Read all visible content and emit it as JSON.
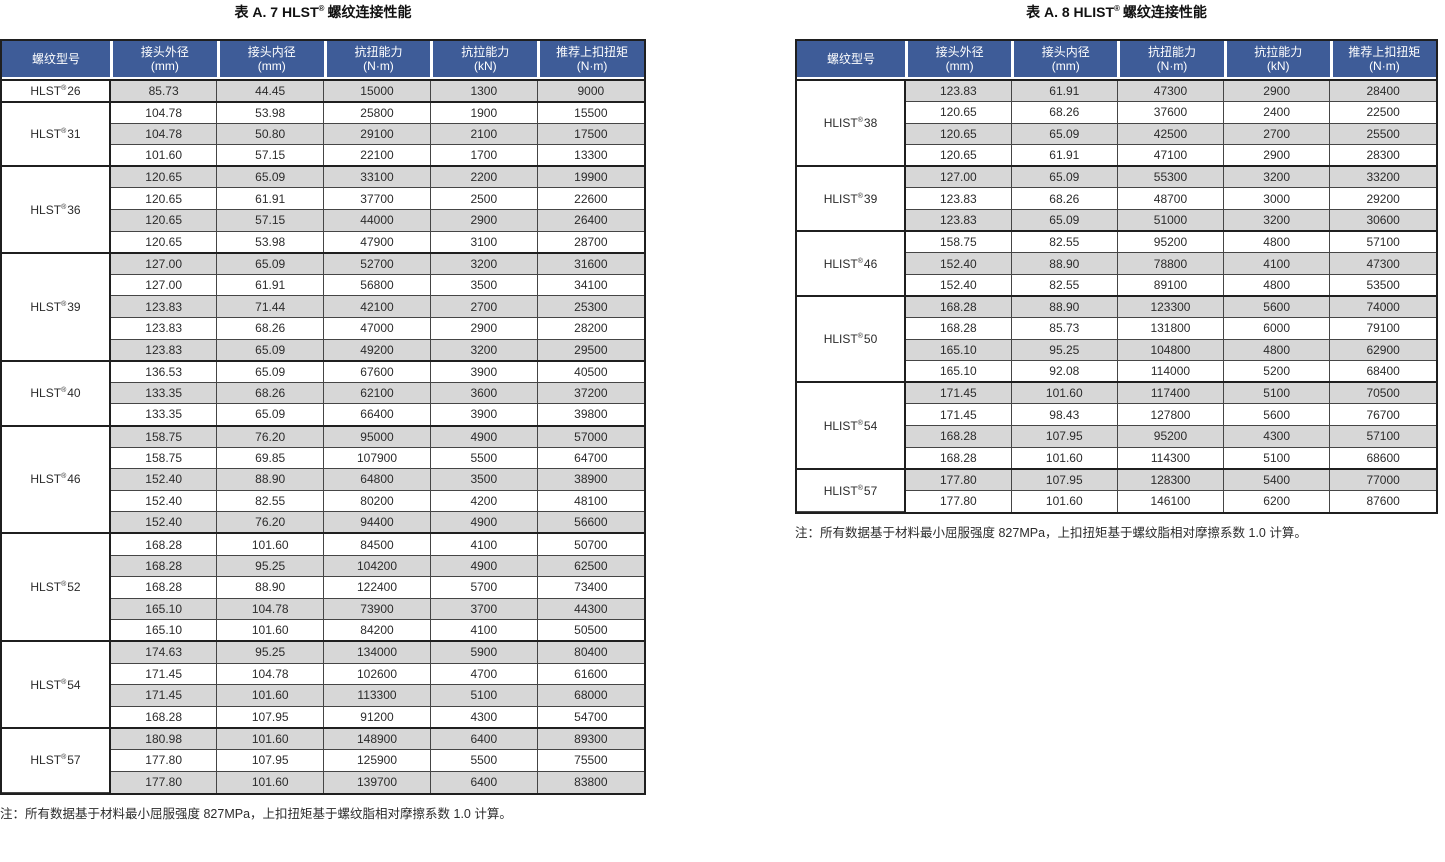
{
  "colors": {
    "header_bg": "#3e5c98",
    "header_text": "#ffffff",
    "row_shaded": "#d7d7d7",
    "row_plain": "#ffffff",
    "border_dark": "#1f1f1f",
    "body_text": "#2b2b2b"
  },
  "reg_mark": "®",
  "columns": [
    {
      "line1": "螺纹型号",
      "line2": ""
    },
    {
      "line1": "接头外径",
      "line2": "(mm)"
    },
    {
      "line1": "接头内径",
      "line2": "(mm)"
    },
    {
      "line1": "抗扭能力",
      "line2": "(N·m)"
    },
    {
      "line1": "抗拉能力",
      "line2": "(kN)"
    },
    {
      "line1": "推荐上扣扭矩",
      "line2": "(N·m)"
    }
  ],
  "tables": [
    {
      "title_prefix": "表 A. 7 HLST",
      "title_suffix": "螺纹连接性能",
      "note": "注：所有数据基于材料最小屈服强度 827MPa，上扣扭矩基于螺纹脂相对摩擦系数 1.0 计算。",
      "groups": [
        {
          "model_base": "HLST",
          "model_size": "26",
          "rows": [
            [
              "85.73",
              "44.45",
              "15000",
              "1300",
              "9000"
            ]
          ]
        },
        {
          "model_base": "HLST",
          "model_size": "31",
          "rows": [
            [
              "104.78",
              "53.98",
              "25800",
              "1900",
              "15500"
            ],
            [
              "104.78",
              "50.80",
              "29100",
              "2100",
              "17500"
            ],
            [
              "101.60",
              "57.15",
              "22100",
              "1700",
              "13300"
            ]
          ]
        },
        {
          "model_base": "HLST",
          "model_size": "36",
          "rows": [
            [
              "120.65",
              "65.09",
              "33100",
              "2200",
              "19900"
            ],
            [
              "120.65",
              "61.91",
              "37700",
              "2500",
              "22600"
            ],
            [
              "120.65",
              "57.15",
              "44000",
              "2900",
              "26400"
            ],
            [
              "120.65",
              "53.98",
              "47900",
              "3100",
              "28700"
            ]
          ]
        },
        {
          "model_base": "HLST",
          "model_size": "39",
          "rows": [
            [
              "127.00",
              "65.09",
              "52700",
              "3200",
              "31600"
            ],
            [
              "127.00",
              "61.91",
              "56800",
              "3500",
              "34100"
            ],
            [
              "123.83",
              "71.44",
              "42100",
              "2700",
              "25300"
            ],
            [
              "123.83",
              "68.26",
              "47000",
              "2900",
              "28200"
            ],
            [
              "123.83",
              "65.09",
              "49200",
              "3200",
              "29500"
            ]
          ]
        },
        {
          "model_base": "HLST",
          "model_size": "40",
          "rows": [
            [
              "136.53",
              "65.09",
              "67600",
              "3900",
              "40500"
            ],
            [
              "133.35",
              "68.26",
              "62100",
              "3600",
              "37200"
            ],
            [
              "133.35",
              "65.09",
              "66400",
              "3900",
              "39800"
            ]
          ]
        },
        {
          "model_base": "HLST",
          "model_size": "46",
          "rows": [
            [
              "158.75",
              "76.20",
              "95000",
              "4900",
              "57000"
            ],
            [
              "158.75",
              "69.85",
              "107900",
              "5500",
              "64700"
            ],
            [
              "152.40",
              "88.90",
              "64800",
              "3500",
              "38900"
            ],
            [
              "152.40",
              "82.55",
              "80200",
              "4200",
              "48100"
            ],
            [
              "152.40",
              "76.20",
              "94400",
              "4900",
              "56600"
            ]
          ]
        },
        {
          "model_base": "HLST",
          "model_size": "52",
          "rows": [
            [
              "168.28",
              "101.60",
              "84500",
              "4100",
              "50700"
            ],
            [
              "168.28",
              "95.25",
              "104200",
              "4900",
              "62500"
            ],
            [
              "168.28",
              "88.90",
              "122400",
              "5700",
              "73400"
            ],
            [
              "165.10",
              "104.78",
              "73900",
              "3700",
              "44300"
            ],
            [
              "165.10",
              "101.60",
              "84200",
              "4100",
              "50500"
            ]
          ]
        },
        {
          "model_base": "HLST",
          "model_size": "54",
          "rows": [
            [
              "174.63",
              "95.25",
              "134000",
              "5900",
              "80400"
            ],
            [
              "171.45",
              "104.78",
              "102600",
              "4700",
              "61600"
            ],
            [
              "171.45",
              "101.60",
              "113300",
              "5100",
              "68000"
            ],
            [
              "168.28",
              "107.95",
              "91200",
              "4300",
              "54700"
            ]
          ]
        },
        {
          "model_base": "HLST",
          "model_size": "57",
          "rows": [
            [
              "180.98",
              "101.60",
              "148900",
              "6400",
              "89300"
            ],
            [
              "177.80",
              "107.95",
              "125900",
              "5500",
              "75500"
            ],
            [
              "177.80",
              "101.60",
              "139700",
              "6400",
              "83800"
            ]
          ]
        }
      ]
    },
    {
      "title_prefix": "表 A. 8 HLIST",
      "title_suffix": "螺纹连接性能",
      "note": "注：所有数据基于材料最小屈服强度 827MPa，上扣扭矩基于螺纹脂相对摩擦系数 1.0 计算。",
      "groups": [
        {
          "model_base": "HLIST",
          "model_size": "38",
          "rows": [
            [
              "123.83",
              "61.91",
              "47300",
              "2900",
              "28400"
            ],
            [
              "120.65",
              "68.26",
              "37600",
              "2400",
              "22500"
            ],
            [
              "120.65",
              "65.09",
              "42500",
              "2700",
              "25500"
            ],
            [
              "120.65",
              "61.91",
              "47100",
              "2900",
              "28300"
            ]
          ]
        },
        {
          "model_base": "HLIST",
          "model_size": "39",
          "rows": [
            [
              "127.00",
              "65.09",
              "55300",
              "3200",
              "33200"
            ],
            [
              "123.83",
              "68.26",
              "48700",
              "3000",
              "29200"
            ],
            [
              "123.83",
              "65.09",
              "51000",
              "3200",
              "30600"
            ]
          ]
        },
        {
          "model_base": "HLIST",
          "model_size": "46",
          "rows": [
            [
              "158.75",
              "82.55",
              "95200",
              "4800",
              "57100"
            ],
            [
              "152.40",
              "88.90",
              "78800",
              "4100",
              "47300"
            ],
            [
              "152.40",
              "82.55",
              "89100",
              "4800",
              "53500"
            ]
          ]
        },
        {
          "model_base": "HLIST",
          "model_size": "50",
          "rows": [
            [
              "168.28",
              "88.90",
              "123300",
              "5600",
              "74000"
            ],
            [
              "168.28",
              "85.73",
              "131800",
              "6000",
              "79100"
            ],
            [
              "165.10",
              "95.25",
              "104800",
              "4800",
              "62900"
            ],
            [
              "165.10",
              "92.08",
              "114000",
              "5200",
              "68400"
            ]
          ]
        },
        {
          "model_base": "HLIST",
          "model_size": "54",
          "rows": [
            [
              "171.45",
              "101.60",
              "117400",
              "5100",
              "70500"
            ],
            [
              "171.45",
              "98.43",
              "127800",
              "5600",
              "76700"
            ],
            [
              "168.28",
              "107.95",
              "95200",
              "4300",
              "57100"
            ],
            [
              "168.28",
              "101.60",
              "114300",
              "5100",
              "68600"
            ]
          ]
        },
        {
          "model_base": "HLIST",
          "model_size": "57",
          "rows": [
            [
              "177.80",
              "107.95",
              "128300",
              "5400",
              "77000"
            ],
            [
              "177.80",
              "101.60",
              "146100",
              "6200",
              "87600"
            ]
          ]
        }
      ]
    }
  ]
}
